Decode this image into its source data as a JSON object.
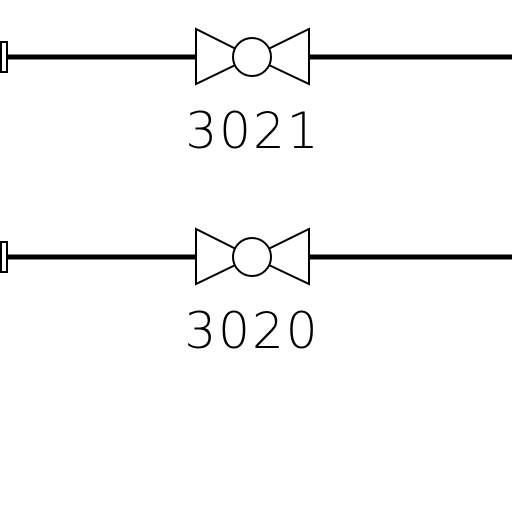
{
  "diagram": {
    "background_color": "#ffffff",
    "line_color": "#000000",
    "valves": [
      {
        "id": "valve-3021",
        "label": "3021"
      },
      {
        "id": "valve-3020",
        "label": "3020"
      }
    ]
  }
}
